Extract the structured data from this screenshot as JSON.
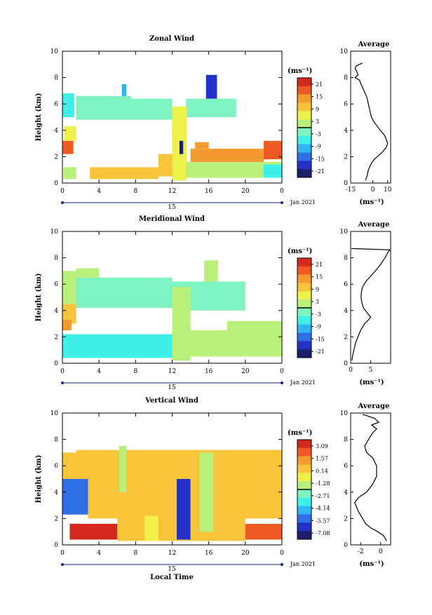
{
  "chart_data": [
    {
      "type": "heatmap",
      "title": "Zonal Wind",
      "ylabel": "Height (km)",
      "xlabel": "",
      "xlim": [
        0,
        24
      ],
      "ylim": [
        0,
        10
      ],
      "x_ticks": [
        "0",
        "4",
        "8",
        "12",
        "16",
        "20",
        "0"
      ],
      "y_ticks": [
        "0",
        "2",
        "4",
        "6",
        "8",
        "10"
      ],
      "date_label": "15",
      "date_suffix": "Jan 2021",
      "colorbar": {
        "unit": "(ms⁻¹)",
        "ticks": [
          "21",
          "15",
          "9",
          "3",
          "-3",
          "-9",
          "-15",
          "-21"
        ],
        "range": [
          -24,
          24
        ]
      },
      "regions": [
        {
          "x0": 0.1,
          "x1": 1.5,
          "y0": 0.3,
          "y1": 1.2,
          "v": 3
        },
        {
          "x0": 0.0,
          "x1": 1.2,
          "y0": 2.2,
          "y1": 3.2,
          "v": 16
        },
        {
          "x0": 0.2,
          "x1": 1.5,
          "y0": 3.2,
          "y1": 4.3,
          "v": 7
        },
        {
          "x0": 0.0,
          "x1": 1.3,
          "y0": 5.0,
          "y1": 6.8,
          "v": -8
        },
        {
          "x0": 1.5,
          "x1": 7.5,
          "y0": 4.8,
          "y1": 6.6,
          "v": -2
        },
        {
          "x0": 7.5,
          "x1": 12.0,
          "y0": 4.8,
          "y1": 6.4,
          "v": -1
        },
        {
          "x0": 13.5,
          "x1": 19.0,
          "y0": 5.0,
          "y1": 6.4,
          "v": -2
        },
        {
          "x0": 15.7,
          "x1": 16.9,
          "y0": 6.4,
          "y1": 8.2,
          "v": -18
        },
        {
          "x0": 6.5,
          "x1": 7.0,
          "y0": 6.6,
          "y1": 7.5,
          "v": -10
        },
        {
          "x0": 3.0,
          "x1": 10.5,
          "y0": 0.3,
          "y1": 1.2,
          "v": 9
        },
        {
          "x0": 10.5,
          "x1": 12.5,
          "y0": 0.5,
          "y1": 2.2,
          "v": 10
        },
        {
          "x0": 12.0,
          "x1": 13.6,
          "y0": 0.2,
          "y1": 5.8,
          "v": 4
        },
        {
          "x0": 12.8,
          "x1": 13.2,
          "y0": 2.2,
          "y1": 3.2,
          "v": -22
        },
        {
          "x0": 14.0,
          "x1": 22.0,
          "y0": 1.6,
          "y1": 2.6,
          "v": 13
        },
        {
          "x0": 22.0,
          "x1": 24.0,
          "y0": 1.8,
          "y1": 3.2,
          "v": 17
        },
        {
          "x0": 13.5,
          "x1": 24.0,
          "y0": 0.4,
          "y1": 1.6,
          "v": 2
        },
        {
          "x0": 22.0,
          "x1": 24.0,
          "y0": 0.4,
          "y1": 1.4,
          "v": -6
        },
        {
          "x0": 14.5,
          "x1": 16.0,
          "y0": 2.6,
          "y1": 3.1,
          "v": 14
        }
      ],
      "profile": {
        "title": "Average",
        "xlabel": "(ms⁻¹)",
        "xlim": [
          -15,
          12
        ],
        "x_ticks": [
          "-15",
          "0",
          "10"
        ],
        "y_ticks": [
          "0",
          "2",
          "4",
          "6",
          "8",
          "10"
        ],
        "x": [
          -5,
          -4,
          -3,
          -1,
          1,
          3,
          6,
          9,
          10,
          9,
          8,
          5,
          3,
          1,
          -1,
          -2,
          -3,
          -4,
          -6,
          -8,
          -9,
          -12,
          -10,
          -11,
          -12,
          -11,
          -7
        ],
        "y": [
          0.2,
          0.5,
          1.0,
          1.5,
          1.8,
          2.0,
          2.3,
          2.7,
          3.0,
          3.3,
          3.6,
          4.0,
          4.3,
          4.6,
          5.0,
          5.5,
          6.0,
          6.5,
          7.0,
          7.5,
          7.8,
          8.0,
          8.2,
          8.5,
          8.7,
          8.9,
          9.1
        ]
      }
    },
    {
      "type": "heatmap",
      "title": "Meridional Wind",
      "ylabel": "Height (km)",
      "xlabel": "",
      "xlim": [
        0,
        24
      ],
      "ylim": [
        0,
        10
      ],
      "x_ticks": [
        "0",
        "4",
        "8",
        "12",
        "16",
        "20",
        "0"
      ],
      "y_ticks": [
        "0",
        "2",
        "4",
        "6",
        "8",
        "10"
      ],
      "date_label": "15",
      "date_suffix": "Jan 2021",
      "colorbar": {
        "unit": "(ms⁻¹)",
        "ticks": [
          "21",
          "15",
          "9",
          "3",
          "-3",
          "-9",
          "-15",
          "-21"
        ],
        "range": [
          -24,
          24
        ]
      },
      "regions": [
        {
          "x0": 0.0,
          "x1": 1.5,
          "y0": 4.5,
          "y1": 7.0,
          "v": 2
        },
        {
          "x0": 0.0,
          "x1": 1.5,
          "y0": 3.0,
          "y1": 4.5,
          "v": 10
        },
        {
          "x0": 0.0,
          "x1": 1.0,
          "y0": 2.5,
          "y1": 3.3,
          "v": 14
        },
        {
          "x0": 1.5,
          "x1": 12.0,
          "y0": 4.2,
          "y1": 6.5,
          "v": -2
        },
        {
          "x0": 1.5,
          "x1": 4.0,
          "y0": 6.5,
          "y1": 7.2,
          "v": 1
        },
        {
          "x0": 12.0,
          "x1": 20.0,
          "y0": 4.0,
          "y1": 6.2,
          "v": -1
        },
        {
          "x0": 15.5,
          "x1": 17.0,
          "y0": 6.2,
          "y1": 7.8,
          "v": 1
        },
        {
          "x0": 0.0,
          "x1": 12.0,
          "y0": 0.4,
          "y1": 2.2,
          "v": -6
        },
        {
          "x0": 12.0,
          "x1": 14.0,
          "y0": 0.2,
          "y1": 5.8,
          "v": 3
        },
        {
          "x0": 14.0,
          "x1": 24.0,
          "y0": 0.5,
          "y1": 2.5,
          "v": 0
        },
        {
          "x0": 18.0,
          "x1": 24.0,
          "y0": 1.5,
          "y1": 3.2,
          "v": 1
        }
      ],
      "profile": {
        "title": "Average",
        "xlabel": "(ms⁻¹)",
        "xlim": [
          0,
          10
        ],
        "x_ticks": [
          "0",
          "5"
        ],
        "y_ticks": [
          "0",
          "2",
          "4",
          "6",
          "8",
          "10"
        ],
        "x": [
          0.3,
          0.5,
          0.8,
          1.2,
          1.8,
          2.5,
          3.5,
          4.5,
          5.0,
          4.2,
          3.2,
          2.8,
          2.6,
          2.7,
          3.0,
          3.8,
          5.0,
          6.2,
          7.5,
          8.6,
          9.3,
          9.8,
          0.2
        ],
        "y": [
          0.2,
          0.6,
          1.0,
          1.5,
          2.0,
          2.5,
          3.0,
          3.3,
          3.5,
          3.8,
          4.2,
          4.6,
          5.0,
          5.4,
          5.8,
          6.2,
          6.6,
          7.0,
          7.5,
          8.0,
          8.4,
          8.6,
          8.7
        ]
      }
    },
    {
      "type": "heatmap",
      "title": "Vertical Wind",
      "ylabel": "Height (km)",
      "xlabel": "Local Time",
      "xlim": [
        0,
        24
      ],
      "ylim": [
        0,
        10
      ],
      "x_ticks": [
        "0",
        "4",
        "8",
        "12",
        "16",
        "20",
        "0"
      ],
      "y_ticks": [
        "0",
        "2",
        "4",
        "6",
        "8",
        "10"
      ],
      "date_label": "15",
      "date_suffix": "Jan 2021",
      "colorbar": {
        "unit": "(ms⁻¹)",
        "ticks": [
          "3.09",
          "1.57",
          "0.14",
          "-1.28",
          "-2.71",
          "-4.14",
          "-5.57",
          "-7.08"
        ],
        "range": [
          -8.5,
          4.5
        ]
      },
      "regions": [
        {
          "x0": 1.5,
          "x1": 24.0,
          "y0": 4.2,
          "y1": 7.2,
          "v": 0.8
        },
        {
          "x0": 0.0,
          "x1": 2.8,
          "y0": 2.3,
          "y1": 5.0,
          "v": -5.8
        },
        {
          "x0": 0.0,
          "x1": 1.5,
          "y0": 5.0,
          "y1": 7.0,
          "v": 0.8
        },
        {
          "x0": 2.8,
          "x1": 24.0,
          "y0": 2.0,
          "y1": 4.2,
          "v": 0.6
        },
        {
          "x0": 0.8,
          "x1": 6.0,
          "y0": 0.4,
          "y1": 1.6,
          "v": 3.5
        },
        {
          "x0": 6.0,
          "x1": 20.0,
          "y0": 0.3,
          "y1": 2.2,
          "v": 0.5
        },
        {
          "x0": 9.0,
          "x1": 10.5,
          "y0": 0.3,
          "y1": 2.2,
          "v": -0.9
        },
        {
          "x0": 12.5,
          "x1": 14.0,
          "y0": 0.4,
          "y1": 5.0,
          "v": -7.0
        },
        {
          "x0": 15.0,
          "x1": 16.5,
          "y0": 1.0,
          "y1": 7.0,
          "v": -1.8
        },
        {
          "x0": 20.0,
          "x1": 24.0,
          "y0": 0.4,
          "y1": 1.6,
          "v": 2.8
        },
        {
          "x0": 6.2,
          "x1": 7.0,
          "y0": 4.0,
          "y1": 7.5,
          "v": -1.3
        }
      ],
      "profile": {
        "title": "Average",
        "xlabel": "(ms⁻¹)",
        "xlim": [
          -3,
          1
        ],
        "x_ticks": [
          "-2",
          "0"
        ],
        "y_ticks": [
          "0",
          "2",
          "4",
          "6",
          "8",
          "10"
        ],
        "x": [
          0.6,
          0.3,
          -0.3,
          -1.0,
          -1.5,
          -1.8,
          -2.2,
          -2.6,
          -2.2,
          -1.4,
          -0.8,
          -0.4,
          -0.4,
          -0.8,
          -1.4,
          -1.6,
          -1.2,
          -0.8,
          -0.4,
          -0.9,
          -0.2,
          -0.6,
          -1.8
        ],
        "y": [
          0.3,
          0.7,
          1.0,
          1.3,
          1.6,
          2.0,
          2.5,
          3.2,
          3.6,
          4.0,
          4.6,
          5.2,
          6.0,
          6.6,
          7.0,
          7.5,
          8.0,
          8.5,
          8.8,
          9.1,
          9.3,
          9.6,
          9.9
        ]
      }
    }
  ]
}
